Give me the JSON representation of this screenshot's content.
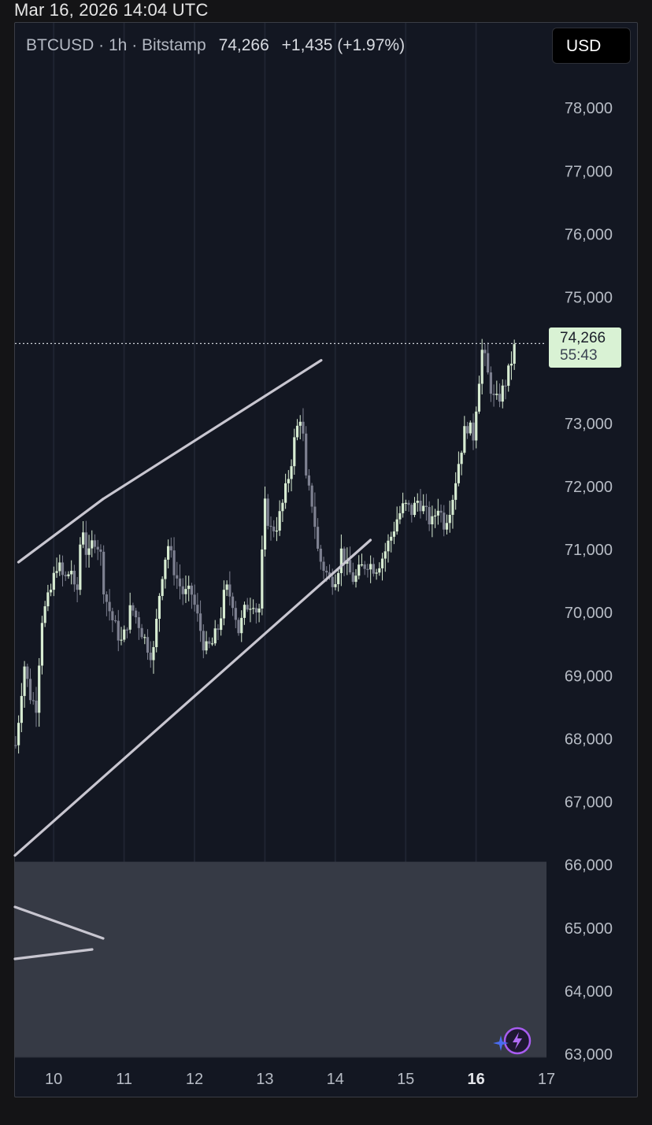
{
  "timestamp": "Mar 16, 2026 14:04 UTC",
  "symbol_line": "BTCUSD · 1h · Bitstamp",
  "last_price": "74,266",
  "change": "+1,435 (+1.97%)",
  "currency_button": "USD",
  "price_tag": {
    "price": "74,266",
    "countdown": "55:43"
  },
  "assistant_icon": "sparkle-lightning-icon",
  "colors": {
    "background": "#131722",
    "candle": "#d7ecd2",
    "trendline": "#c8c6d0",
    "price_tag": "#d9f2d4",
    "overlay": "#363a45"
  },
  "chart_data": {
    "type": "candlestick",
    "title": "BTCUSD · 1h · Bitstamp",
    "xlabel": "",
    "ylabel": "",
    "x_ticks": [
      "10",
      "11",
      "12",
      "13",
      "14",
      "15",
      "16",
      "17"
    ],
    "x_tick_bold": "16",
    "y_ticks": [
      78000,
      77000,
      76000,
      75000,
      74000,
      73000,
      72000,
      71000,
      70000,
      69000,
      68000,
      67000,
      66000,
      65000,
      64000,
      63000
    ],
    "y_tick_labels": [
      "78,000",
      "77,000",
      "76,000",
      "75,000",
      "",
      "73,000",
      "72,000",
      "71,000",
      "70,000",
      "69,000",
      "68,000",
      "67,000",
      "66,000",
      "65,000",
      "64,000",
      "63,000"
    ],
    "ylim": [
      62950,
      79350
    ],
    "xlim": [
      9.45,
      17.0
    ],
    "last_price": 74266,
    "price_line_style": "dotted",
    "grid": "vertical",
    "close_path": [
      [
        9.45,
        67800
      ],
      [
        9.5,
        68300
      ],
      [
        9.58,
        69200
      ],
      [
        9.66,
        68700
      ],
      [
        9.75,
        68500
      ],
      [
        9.83,
        69900
      ],
      [
        9.95,
        70300
      ],
      [
        10.05,
        70800
      ],
      [
        10.15,
        70500
      ],
      [
        10.25,
        70700
      ],
      [
        10.32,
        70100
      ],
      [
        10.4,
        71500
      ],
      [
        10.48,
        70800
      ],
      [
        10.57,
        71200
      ],
      [
        10.66,
        71000
      ],
      [
        10.72,
        70300
      ],
      [
        10.83,
        69900
      ],
      [
        10.97,
        69500
      ],
      [
        11.1,
        70100
      ],
      [
        11.22,
        69800
      ],
      [
        11.32,
        69500
      ],
      [
        11.41,
        69300
      ],
      [
        11.52,
        70500
      ],
      [
        11.62,
        71100
      ],
      [
        11.73,
        70600
      ],
      [
        11.84,
        70300
      ],
      [
        11.96,
        70300
      ],
      [
        12.07,
        69800
      ],
      [
        12.15,
        69400
      ],
      [
        12.25,
        69500
      ],
      [
        12.35,
        69800
      ],
      [
        12.44,
        70400
      ],
      [
        12.54,
        70200
      ],
      [
        12.63,
        69700
      ],
      [
        12.73,
        70100
      ],
      [
        12.84,
        70200
      ],
      [
        12.91,
        69900
      ],
      [
        13.0,
        71700
      ],
      [
        13.08,
        71300
      ],
      [
        13.18,
        71400
      ],
      [
        13.27,
        71800
      ],
      [
        13.36,
        72300
      ],
      [
        13.43,
        72800
      ],
      [
        13.52,
        73200
      ],
      [
        13.58,
        72100
      ],
      [
        13.68,
        71700
      ],
      [
        13.76,
        70900
      ],
      [
        13.84,
        70700
      ],
      [
        13.93,
        70500
      ],
      [
        14.02,
        70600
      ],
      [
        14.09,
        71000
      ],
      [
        14.17,
        70700
      ],
      [
        14.27,
        70500
      ],
      [
        14.36,
        70700
      ],
      [
        14.46,
        70800
      ],
      [
        14.57,
        70700
      ],
      [
        14.68,
        70900
      ],
      [
        14.79,
        71200
      ],
      [
        14.88,
        71500
      ],
      [
        14.98,
        71700
      ],
      [
        15.09,
        71600
      ],
      [
        15.18,
        71800
      ],
      [
        15.27,
        71600
      ],
      [
        15.37,
        71400
      ],
      [
        15.46,
        71700
      ],
      [
        15.55,
        71400
      ],
      [
        15.66,
        71800
      ],
      [
        15.77,
        72500
      ],
      [
        15.86,
        73000
      ],
      [
        15.96,
        72800
      ],
      [
        16.02,
        73500
      ],
      [
        16.09,
        74200
      ],
      [
        16.18,
        73700
      ],
      [
        16.27,
        73300
      ],
      [
        16.37,
        73500
      ],
      [
        16.46,
        73800
      ],
      [
        16.56,
        74266
      ]
    ],
    "trendlines": [
      {
        "from": [
          9.5,
          70800
        ],
        "to": [
          10.7,
          71800
        ]
      },
      {
        "from": [
          10.7,
          71800
        ],
        "to": [
          13.8,
          74000
        ]
      },
      {
        "from": [
          9.45,
          66150
        ],
        "to": [
          14.5,
          71150
        ]
      }
    ]
  }
}
